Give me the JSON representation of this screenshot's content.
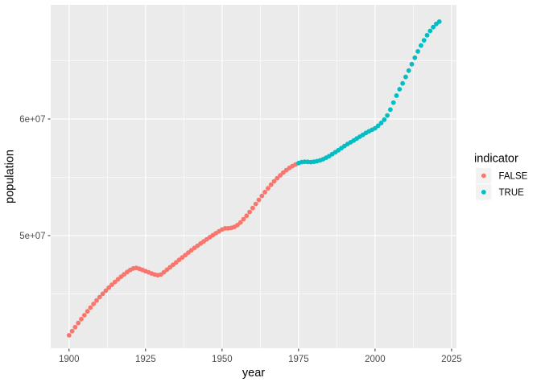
{
  "figure": {
    "background": "#FFFFFF",
    "panel_background": "#EBEBEB",
    "grid_color": "#FFFFFF",
    "axis_text_color": "#4D4D4D",
    "tick_mark_color": "#333333"
  },
  "legend": {
    "title": "indicator",
    "key_background": "#F2F2F2",
    "entries": [
      {
        "label": "FALSE",
        "color": "#F8766D"
      },
      {
        "label": "TRUE",
        "color": "#00BFC4"
      }
    ]
  },
  "chart_data": {
    "type": "scatter",
    "title": "",
    "xlabel": "year",
    "ylabel": "population",
    "grid": true,
    "legend_position": "right",
    "xlim": [
      1894,
      2026.6
    ],
    "ylim": [
      40340000,
      69790000
    ],
    "x_ticks": [
      1900,
      1925,
      1950,
      1975,
      2000,
      2025
    ],
    "x_minor_ticks": [
      1912.5,
      1937.5,
      1962.5,
      1987.5,
      2012.5
    ],
    "y_ticks": [
      {
        "label": "5e+07",
        "value": 50000000
      },
      {
        "label": "6e+07",
        "value": 60000000
      }
    ],
    "y_minor_ticks": [
      45000000,
      55000000,
      65000000
    ],
    "point_radius": 2.9,
    "series": [
      {
        "name": "FALSE",
        "color": "#F8766D",
        "years": [
          1900,
          1901,
          1902,
          1903,
          1904,
          1905,
          1906,
          1907,
          1908,
          1909,
          1910,
          1911,
          1912,
          1913,
          1914,
          1915,
          1916,
          1917,
          1918,
          1919,
          1920,
          1921,
          1922,
          1923,
          1924,
          1925,
          1926,
          1927,
          1928,
          1929,
          1930,
          1931,
          1932,
          1933,
          1934,
          1935,
          1936,
          1937,
          1938,
          1939,
          1940,
          1941,
          1942,
          1943,
          1944,
          1945,
          1946,
          1947,
          1948,
          1949,
          1950,
          1951,
          1952,
          1953,
          1954,
          1955,
          1956,
          1957,
          1958,
          1959,
          1960,
          1961,
          1962,
          1963,
          1964,
          1965,
          1966,
          1967,
          1968,
          1969,
          1970,
          1971,
          1972,
          1973,
          1974
        ],
        "population": [
          41450000,
          41800000,
          42150000,
          42500000,
          42840000,
          43170000,
          43500000,
          43820000,
          44130000,
          44430000,
          44720000,
          45000000,
          45270000,
          45530000,
          45780000,
          46020000,
          46250000,
          46470000,
          46680000,
          46880000,
          47050000,
          47180000,
          47220000,
          47150000,
          47050000,
          46950000,
          46850000,
          46750000,
          46660000,
          46600000,
          46650000,
          46860000,
          47070000,
          47280000,
          47490000,
          47700000,
          47910000,
          48120000,
          48330000,
          48540000,
          48740000,
          48940000,
          49130000,
          49320000,
          49500000,
          49680000,
          49860000,
          50030000,
          50200000,
          50360000,
          50520000,
          50620000,
          50620000,
          50660000,
          50740000,
          50900000,
          51120000,
          51400000,
          51700000,
          52020000,
          52360000,
          52710000,
          53060000,
          53400000,
          53730000,
          54050000,
          54360000,
          54650000,
          54920000,
          55170000,
          55400000,
          55610000,
          55800000,
          55960000,
          56100000
        ]
      },
      {
        "name": "TRUE",
        "color": "#00BFC4",
        "years": [
          1975,
          1976,
          1977,
          1978,
          1979,
          1980,
          1981,
          1982,
          1983,
          1984,
          1985,
          1986,
          1987,
          1988,
          1989,
          1990,
          1991,
          1992,
          1993,
          1994,
          1995,
          1996,
          1997,
          1998,
          1999,
          2000,
          2001,
          2002,
          2003,
          2004,
          2005,
          2006,
          2007,
          2008,
          2009,
          2010,
          2011,
          2012,
          2013,
          2014,
          2015,
          2016,
          2017,
          2018,
          2019,
          2020,
          2021
        ],
        "population": [
          56220000,
          56300000,
          56330000,
          56320000,
          56300000,
          56330000,
          56380000,
          56450000,
          56550000,
          56680000,
          56820000,
          56980000,
          57150000,
          57320000,
          57500000,
          57680000,
          57850000,
          58000000,
          58150000,
          58320000,
          58480000,
          58640000,
          58800000,
          58940000,
          59070000,
          59200000,
          59420000,
          59660000,
          59940000,
          60300000,
          60800000,
          61400000,
          62000000,
          62550000,
          63050000,
          63600000,
          64150000,
          64700000,
          65250000,
          65800000,
          66300000,
          66750000,
          67180000,
          67550000,
          67880000,
          68150000,
          68350000
        ]
      }
    ]
  }
}
